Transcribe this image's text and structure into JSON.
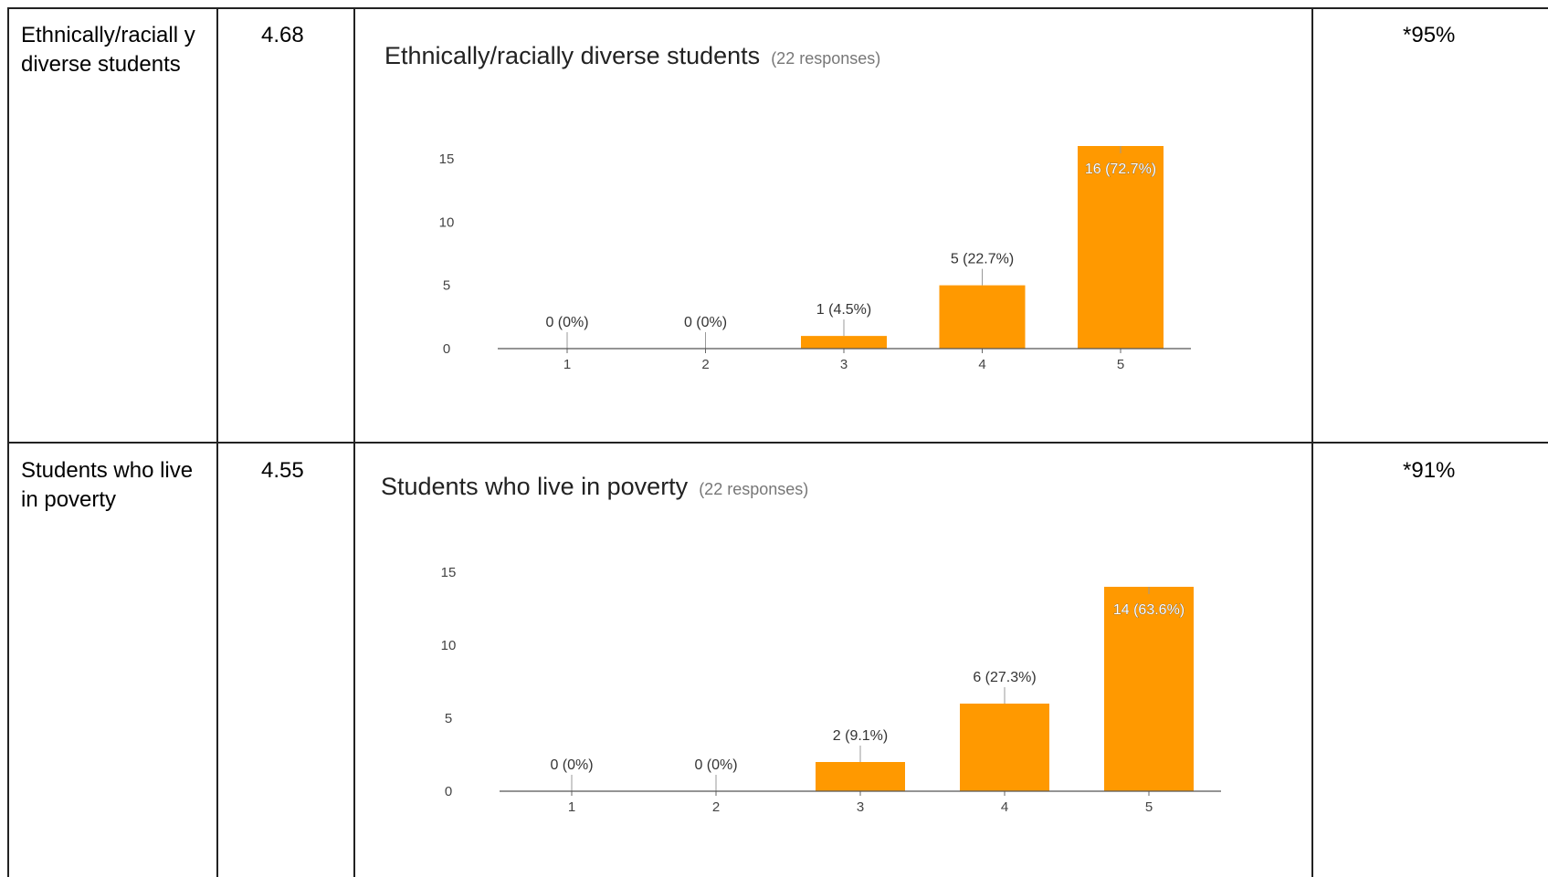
{
  "rows": [
    {
      "label": "Ethnically/raciall y diverse students",
      "mean": "4.68",
      "percent": "*95%"
    },
    {
      "label": "Students who live in poverty",
      "mean": "4.55",
      "percent": "*91%"
    }
  ],
  "bar_color": "#ff9900",
  "chart_data": [
    {
      "type": "bar",
      "title": "Ethnically/racially diverse students",
      "subtitle": "(22 responses)",
      "categories": [
        "1",
        "2",
        "3",
        "4",
        "5"
      ],
      "values": [
        0,
        0,
        1,
        5,
        16
      ],
      "data_labels": [
        "0 (0%)",
        "0 (0%)",
        "1 (4.5%)",
        "5 (22.7%)",
        "16 (72.7%)"
      ],
      "yticks": [
        "0",
        "5",
        "10",
        "15"
      ],
      "ylim": [
        0,
        16
      ],
      "grid": false
    },
    {
      "type": "bar",
      "title": "Students who live in poverty",
      "subtitle": "(22 responses)",
      "categories": [
        "1",
        "2",
        "3",
        "4",
        "5"
      ],
      "values": [
        0,
        0,
        2,
        6,
        14
      ],
      "data_labels": [
        "0 (0%)",
        "0 (0%)",
        "2 (9.1%)",
        "6 (27.3%)",
        "14 (63.6%)"
      ],
      "yticks": [
        "0",
        "5",
        "10",
        "15"
      ],
      "ylim": [
        0,
        16
      ],
      "grid": false
    }
  ]
}
